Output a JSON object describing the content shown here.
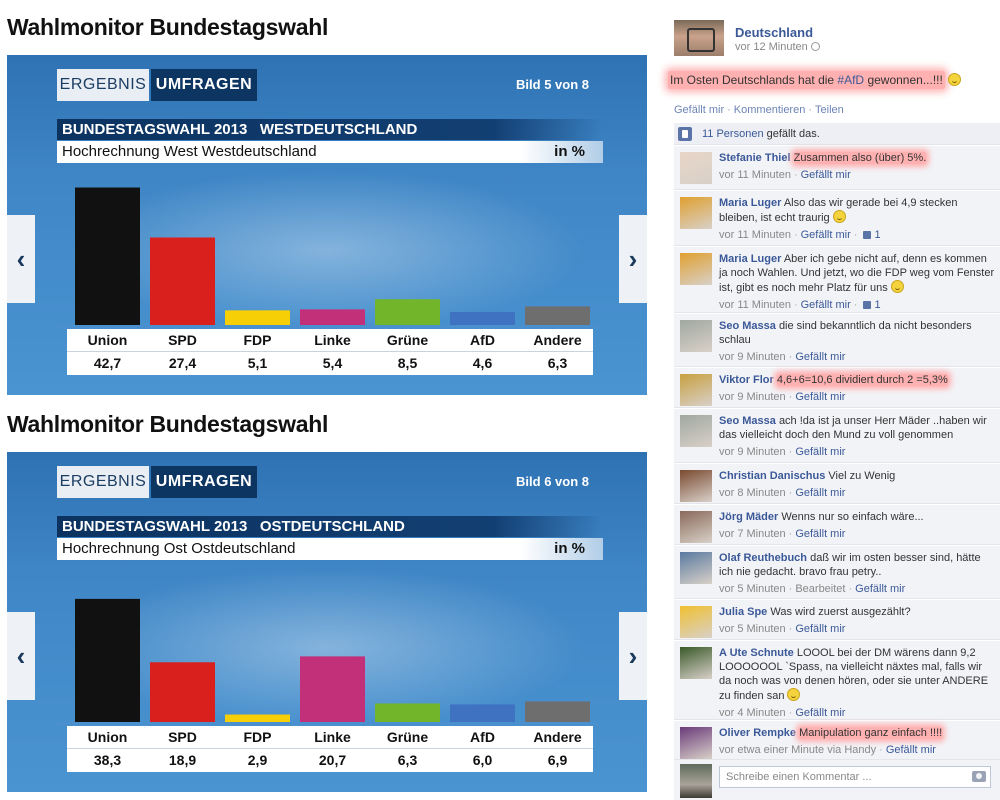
{
  "panels": [
    {
      "heading": "Wahlmonitor Bundestagswahl",
      "tab_ergebnis": "ERGEBNIS",
      "tab_umfragen": "UMFRAGEN",
      "slide_counter": "Bild 5 von 8",
      "chart_title": "BUNDESTAGSWAHL 2013   WESTDEUTSCHLAND",
      "chart_subtitle": "Hochrechnung West Westdeutschland",
      "unit": "in %",
      "nav_prev": "‹",
      "nav_next": "›"
    },
    {
      "heading": "Wahlmonitor Bundestagswahl",
      "tab_ergebnis": "ERGEBNIS",
      "tab_umfragen": "UMFRAGEN",
      "slide_counter": "Bild 6 von 8",
      "chart_title": "BUNDESTAGSWAHL 2013   OSTDEUTSCHLAND",
      "chart_subtitle": "Hochrechnung Ost Ostdeutschland",
      "unit": "in %",
      "nav_prev": "‹",
      "nav_next": "›"
    }
  ],
  "chart_data": [
    {
      "type": "bar",
      "title": "BUNDESTAGSWAHL 2013   WESTDEUTSCHLAND",
      "subtitle": "Hochrechnung West Westdeutschland",
      "ylabel": "in %",
      "categories": [
        "Union",
        "SPD",
        "FDP",
        "Linke",
        "Grüne",
        "AfD",
        "Andere"
      ],
      "values": [
        42.7,
        27.4,
        5.1,
        5.4,
        8.5,
        4.6,
        6.3
      ],
      "value_labels": [
        "42,7",
        "27,4",
        "5,1",
        "5,4",
        "8,5",
        "4,6",
        "6,3"
      ],
      "colors": [
        "#111111",
        "#d9201c",
        "#f7cf06",
        "#c2307a",
        "#72b52b",
        "#3f73c2",
        "#6e6e6e"
      ],
      "ylim": [
        0,
        45
      ]
    },
    {
      "type": "bar",
      "title": "BUNDESTAGSWAHL 2013   OSTDEUTSCHLAND",
      "subtitle": "Hochrechnung Ost Ostdeutschland",
      "ylabel": "in %",
      "categories": [
        "Union",
        "SPD",
        "FDP",
        "Linke",
        "Grüne",
        "AfD",
        "Andere"
      ],
      "values": [
        38.3,
        18.9,
        2.9,
        20.7,
        6.3,
        6.0,
        6.9
      ],
      "value_labels": [
        "38,3",
        "18,9",
        "2,9",
        "20,7",
        "6,3",
        "6,0",
        "6,9"
      ],
      "colors": [
        "#111111",
        "#d9201c",
        "#f7cf06",
        "#c2307a",
        "#72b52b",
        "#3f73c2",
        "#6e6e6e"
      ],
      "ylim": [
        0,
        45
      ]
    }
  ],
  "post": {
    "author": "Deutschland",
    "time": "vor 12 Minuten",
    "text_before": "Im Osten Deutschlands hat die ",
    "hashtag": "#AfD",
    "text_after": " gewonnen...!!!",
    "like_action": "Gefällt mir",
    "comment_action": "Kommentieren",
    "share_action": "Teilen",
    "likes_count": "11 Personen",
    "likes_suffix": " gefällt das."
  },
  "comments": [
    {
      "name": "Stefanie Thiel",
      "text": "Zusammen also (über) 5%.",
      "highlight": true,
      "time": "vor 11 Minuten",
      "like": "Gefällt mir",
      "avatar": "#e8d6c8"
    },
    {
      "name": "Maria Luger",
      "text": "Also das wir gerade bei 4,9 stecken bleiben, ist echt traurig",
      "smiley": true,
      "time": "vor 11 Minuten",
      "like": "Gefällt mir",
      "likes": "1",
      "avatar": "#e0a030"
    },
    {
      "name": "Maria Luger",
      "text": "Aber ich gebe nicht auf, denn es kommen ja noch Wahlen. Und jetzt, wo die FDP weg vom Fenster ist, gibt es noch mehr Platz für uns",
      "smiley": true,
      "time": "vor 11 Minuten",
      "like": "Gefällt mir",
      "likes": "1",
      "avatar": "#e0a030"
    },
    {
      "name": "Seo Massa",
      "text": "die sind bekanntlich da nicht besonders schlau",
      "time": "vor 9 Minuten",
      "like": "Gefällt mir",
      "avatar": "#a0a8a0"
    },
    {
      "name": "Viktor Flor",
      "text": "4,6+6=10,6 dividiert durch 2 =5,3%",
      "highlight": true,
      "time": "vor 9 Minuten",
      "like": "Gefällt mir",
      "avatar": "#c8a040"
    },
    {
      "name": "Seo Massa",
      "text": "ach !da ist ja unser Herr Mäder ..haben wir das vielleicht doch den Mund zu voll genommen",
      "time": "vor 9 Minuten",
      "like": "Gefällt mir",
      "avatar": "#a0a8a0"
    },
    {
      "name": "Christian Danischus",
      "text": "Viel zu Wenig",
      "time": "vor 8 Minuten",
      "like": "Gefällt mir",
      "avatar": "#7a4a30"
    },
    {
      "name": "Jörg Mäder",
      "text": "Wenns nur so einfach wäre...",
      "time": "vor 7 Minuten",
      "like": "Gefällt mir",
      "avatar": "#8a6a5a"
    },
    {
      "name": "Olaf Reuthebuch",
      "text": "daß wir im osten besser sind, hätte ich nie gedacht. bravo frau petry..",
      "time": "vor 5 Minuten",
      "edited": "Bearbeitet",
      "like": "Gefällt mir",
      "avatar": "#5a7aa0"
    },
    {
      "name": "Julia Spe",
      "text": "Was wird zuerst ausgezählt?",
      "time": "vor 5 Minuten",
      "like": "Gefällt mir",
      "avatar": "#f0c030"
    },
    {
      "name": "A Ute Schnute",
      "text": "LOOOL bei der DM wärens dann 9,2 LOOOOOOL `Spass, na vielleicht näxtes mal, falls wir da noch was von denen hören, oder sie unter ANDERE zu finden san",
      "smiley": true,
      "time": "vor 4 Minuten",
      "like": "Gefällt mir",
      "avatar": "#3a5a2a"
    },
    {
      "name": "Oliver Rempke",
      "text": "Manipulation ganz einfach !!!!",
      "highlight": true,
      "time": "vor etwa einer Minute via Handy",
      "like": "Gefällt mir",
      "avatar": "#6a3a7a"
    }
  ],
  "comment_box": {
    "placeholder": "Schreibe einen Kommentar ..."
  },
  "colors": {
    "fb_link": "#3b5998",
    "highlight": "#ffb0b0",
    "slide_dark_blue": "#0d3562"
  },
  "icons": {
    "post_visibility": "globe-icon",
    "likes": "thumbs-up-icon",
    "comment_box": "camera-icon"
  }
}
